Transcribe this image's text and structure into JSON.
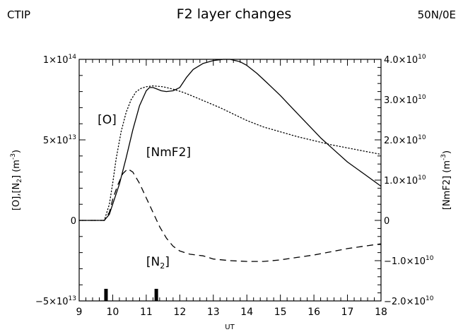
{
  "header": {
    "left": "CTIP",
    "title": "F2 layer changes",
    "right": "50N/0E"
  },
  "chart_data": {
    "type": "line",
    "title": "F2 layer changes",
    "xlabel": "UT",
    "ylabel_left": "[O],[N",
    "ylabel_left_sub": "2",
    "ylabel_left_unit": "] (m",
    "ylabel_left_exp": "-3",
    "ylabel_right": "[NmF2] (m",
    "ylabel_right_exp": "-3",
    "xlim": [
      9,
      18
    ],
    "ylim_left": [
      -50000000000000.0,
      100000000000000.0
    ],
    "ylim_right": [
      -20000000000.0,
      40000000000.0
    ],
    "x_ticks": [
      "9",
      "10",
      "11",
      "12",
      "13",
      "14",
      "15",
      "16",
      "17",
      "18"
    ],
    "y_left_ticks": [
      {
        "value": 100000000000000.0,
        "mant": "1×10",
        "exp": "14"
      },
      {
        "value": 50000000000000.0,
        "mant": "5×10",
        "exp": "13"
      },
      {
        "value": 0,
        "mant": "0",
        "exp": ""
      },
      {
        "value": -50000000000000.0,
        "mant": "−5×10",
        "exp": "13"
      }
    ],
    "y_right_ticks": [
      {
        "value": 40000000000.0,
        "mant": "4.0×10",
        "exp": "10"
      },
      {
        "value": 30000000000.0,
        "mant": "3.0×10",
        "exp": "10"
      },
      {
        "value": 20000000000.0,
        "mant": "2.0×10",
        "exp": "10"
      },
      {
        "value": 10000000000.0,
        "mant": "1.0×10",
        "exp": "10"
      },
      {
        "value": 0,
        "mant": "0",
        "exp": ""
      },
      {
        "value": -10000000000.0,
        "mant": "−1.0×10",
        "exp": "10"
      },
      {
        "value": -20000000000.0,
        "mant": "−2.0×10",
        "exp": "10"
      }
    ],
    "series": [
      {
        "name": "[O]",
        "axis": "left",
        "style": "dotted",
        "x": [
          9.0,
          9.5,
          9.75,
          9.9,
          10.0,
          10.1,
          10.25,
          10.4,
          10.55,
          10.7,
          10.85,
          11.0,
          11.2,
          11.5,
          11.8,
          12.1,
          12.4,
          12.8,
          13.2,
          13.6,
          14.0,
          14.5,
          15.0,
          15.5,
          16.0,
          16.5,
          17.0,
          17.5,
          18.0
        ],
        "y": [
          0,
          0,
          0,
          10000000000000.0,
          23000000000000.0,
          38000000000000.0,
          55000000000000.0,
          67000000000000.0,
          75000000000000.0,
          80000000000000.0,
          82000000000000.0,
          83000000000000.0,
          83500000000000.0,
          83000000000000.0,
          81500000000000.0,
          79500000000000.0,
          77000000000000.0,
          73500000000000.0,
          70000000000000.0,
          66000000000000.0,
          62000000000000.0,
          58000000000000.0,
          55000000000000.0,
          52000000000000.0,
          49500000000000.0,
          47000000000000.0,
          45000000000000.0,
          43000000000000.0,
          41000000000000.0
        ]
      },
      {
        "name": "[NmF2]",
        "axis": "right",
        "style": "solid",
        "x": [
          9.0,
          9.5,
          9.75,
          9.9,
          10.0,
          10.2,
          10.4,
          10.6,
          10.8,
          11.0,
          11.1,
          11.2,
          11.3,
          11.45,
          11.6,
          11.8,
          12.0,
          12.2,
          12.4,
          12.7,
          13.0,
          13.3,
          13.5,
          13.8,
          14.0,
          14.3,
          14.6,
          15.0,
          15.4,
          15.8,
          16.2,
          16.6,
          17.0,
          17.5,
          18.0
        ],
        "y": [
          0,
          0,
          0,
          1500000000.0,
          4000000000.0,
          9000000000.0,
          15500000000.0,
          22500000000.0,
          28500000000.0,
          32200000000.0,
          33000000000.0,
          33000000000.0,
          32700000000.0,
          32200000000.0,
          32000000000.0,
          32200000000.0,
          33000000000.0,
          35500000000.0,
          37500000000.0,
          39000000000.0,
          39700000000.0,
          40000000000.0,
          40000000000.0,
          39400000000.0,
          38500000000.0,
          36500000000.0,
          34200000000.0,
          31000000000.0,
          27500000000.0,
          24000000000.0,
          20500000000.0,
          17500000000.0,
          14500000000.0,
          11500000000.0,
          8500000000.0
        ]
      },
      {
        "name": "[N2]",
        "axis": "left",
        "style": "dashed",
        "x": [
          9.0,
          9.5,
          9.75,
          9.9,
          10.0,
          10.15,
          10.3,
          10.45,
          10.6,
          10.8,
          11.0,
          11.2,
          11.4,
          11.6,
          11.8,
          12.0,
          12.3,
          12.7,
          13.0,
          13.5,
          14.0,
          14.5,
          15.0,
          15.5,
          16.0,
          16.5,
          17.0,
          17.5,
          18.0
        ],
        "y": [
          0,
          0,
          0,
          5000000000000.0,
          13000000000000.0,
          22000000000000.0,
          29000000000000.0,
          32000000000000.0,
          30000000000000.0,
          23000000000000.0,
          14000000000000.0,
          5000000000000.0,
          -4000000000000.0,
          -11000000000000.0,
          -16000000000000.0,
          -19000000000000.0,
          -21000000000000.0,
          -22000000000000.0,
          -24000000000000.0,
          -25000000000000.0,
          -25500000000000.0,
          -25500000000000.0,
          -24500000000000.0,
          -23000000000000.0,
          -21500000000000.0,
          -19500000000000.0,
          -17500000000000.0,
          -16000000000000.0,
          -14500000000000.0
        ]
      }
    ],
    "markers": [
      {
        "x": 9.8,
        "y_top": -42500000000000.0
      },
      {
        "x": 11.3,
        "y_top": -42500000000000.0
      }
    ],
    "annotations": [
      {
        "series": "[O]",
        "label": "[O]",
        "x": 9.55,
        "y": 60000000000000.0
      },
      {
        "series": "[NmF2]",
        "label": "[NmF2]",
        "x": 11.0,
        "y": 40000000000000.0
      },
      {
        "series": "[N2]",
        "label": "[N",
        "sub": "2",
        "tail": "]",
        "x": 11.0,
        "y": -28000000000000.0
      }
    ]
  }
}
